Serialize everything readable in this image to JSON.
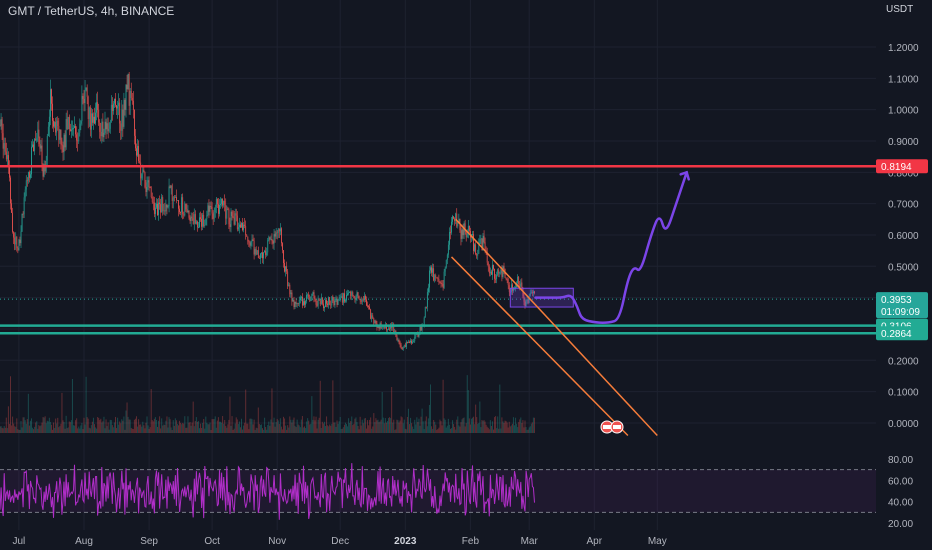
{
  "header": {
    "title": "GMT / TetherUS, 4h, BINANCE",
    "currency": "USDT"
  },
  "colors": {
    "background": "#131722",
    "grid": "#1e2230",
    "up": "#26a69a",
    "down": "#ef5350",
    "resistance": "#f23645",
    "support": "#22ab94",
    "channel": "#f57c3a",
    "projection": "#7b45e8",
    "rsi": "#b02ec8"
  },
  "chart_data": [
    {
      "type": "candlestick",
      "title": "GMT / TetherUS, 4h, BINANCE",
      "ylabel": "USDT",
      "x_tick_labels": [
        "Jul",
        "Aug",
        "Sep",
        "Oct",
        "Nov",
        "Dec",
        "2023",
        "Feb",
        "Mar",
        "Apr",
        "May"
      ],
      "y_tick_labels": [
        "1.2000",
        "1.1000",
        "1.0000",
        "0.9000",
        "0.8000",
        "0.7000",
        "0.6000",
        "0.5000",
        "0.4000",
        "0.3000",
        "0.2000",
        "0.1000",
        "0.0000"
      ],
      "ylim": [
        0.0,
        1.2
      ],
      "price_path": [
        [
          "Jun 22",
          0.95
        ],
        [
          "Jun 26",
          0.85
        ],
        [
          "Jun 28",
          0.6
        ],
        [
          "Jul 1",
          0.57
        ],
        [
          "Jul 4",
          0.72
        ],
        [
          "Jul 7",
          0.85
        ],
        [
          "Jul 10",
          0.9
        ],
        [
          "Jul 13",
          0.8
        ],
        [
          "Jul 16",
          1.02
        ],
        [
          "Jul 19",
          0.95
        ],
        [
          "Jul 22",
          0.88
        ],
        [
          "Jul 25",
          0.98
        ],
        [
          "Jul 28",
          0.9
        ],
        [
          "Aug 1",
          1.05
        ],
        [
          "Aug 4",
          0.98
        ],
        [
          "Aug 7",
          1.0
        ],
        [
          "Aug 10",
          0.92
        ],
        [
          "Aug 13",
          0.96
        ],
        [
          "Aug 16",
          1.0
        ],
        [
          "Aug 19",
          0.97
        ],
        [
          "Aug 22",
          1.08
        ],
        [
          "Aug 25",
          0.95
        ],
        [
          "Aug 27",
          0.82
        ],
        [
          "Aug 31",
          0.75
        ],
        [
          "Sep 4",
          0.69
        ],
        [
          "Sep 8",
          0.7
        ],
        [
          "Sep 12",
          0.74
        ],
        [
          "Sep 16",
          0.7
        ],
        [
          "Sep 20",
          0.66
        ],
        [
          "Sep 25",
          0.65
        ],
        [
          "Sep 30",
          0.67
        ],
        [
          "Oct 5",
          0.7
        ],
        [
          "Oct 10",
          0.65
        ],
        [
          "Oct 15",
          0.64
        ],
        [
          "Oct 20",
          0.57
        ],
        [
          "Oct 24",
          0.53
        ],
        [
          "Oct 28",
          0.58
        ],
        [
          "Nov 2",
          0.62
        ],
        [
          "Nov 5",
          0.48
        ],
        [
          "Nov 9",
          0.37
        ],
        [
          "Nov 13",
          0.39
        ],
        [
          "Nov 18",
          0.4
        ],
        [
          "Nov 23",
          0.38
        ],
        [
          "Nov 28",
          0.39
        ],
        [
          "Dec 3",
          0.4
        ],
        [
          "Dec 8",
          0.41
        ],
        [
          "Dec 13",
          0.39
        ],
        [
          "Dec 17",
          0.32
        ],
        [
          "Dec 22",
          0.3
        ],
        [
          "Dec 26",
          0.31
        ],
        [
          "Dec 30",
          0.24
        ],
        [
          "Jan 3",
          0.26
        ],
        [
          "Jan 7",
          0.28
        ],
        [
          "Jan 10",
          0.33
        ],
        [
          "Jan 13",
          0.5
        ],
        [
          "Jan 16",
          0.45
        ],
        [
          "Jan 19",
          0.44
        ],
        [
          "Jan 22",
          0.62
        ],
        [
          "Jan 25",
          0.66
        ],
        [
          "Jan 28",
          0.6
        ],
        [
          "Jan 31",
          0.63
        ],
        [
          "Feb 3",
          0.55
        ],
        [
          "Feb 7",
          0.58
        ],
        [
          "Feb 10",
          0.5
        ],
        [
          "Feb 14",
          0.47
        ],
        [
          "Feb 17",
          0.49
        ],
        [
          "Feb 20",
          0.42
        ],
        [
          "Feb 24",
          0.45
        ],
        [
          "Feb 27",
          0.39
        ],
        [
          "Mar 2",
          0.41
        ],
        [
          "Mar 4",
          0.3953
        ]
      ],
      "horizontal_levels": [
        {
          "label": "0.8194",
          "value": 0.8194,
          "role": "resistance"
        },
        {
          "label": "0.3106",
          "value": 0.3106,
          "role": "support"
        },
        {
          "label": "0.2864",
          "value": 0.2864,
          "role": "support"
        }
      ],
      "current_price": {
        "label": "0.3953",
        "value": 0.3953,
        "countdown": "01:09:09"
      },
      "consolidation_box": {
        "x_from": "Feb 20",
        "x_to": "Mar 22",
        "y_from": 0.37,
        "y_to": 0.43
      },
      "descending_channel": {
        "upper": [
          [
            "Jan 25",
            0.65
          ],
          [
            "May 1",
            -0.04
          ]
        ],
        "lower": [
          [
            "Jan 23",
            0.53
          ],
          [
            "Apr 17",
            -0.04
          ]
        ]
      },
      "projection_path": [
        [
          "Mar 4",
          0.4
        ],
        [
          "Mar 12",
          0.4
        ],
        [
          "Mar 17",
          0.4
        ],
        [
          "Mar 21",
          0.41
        ],
        [
          "Mar 24",
          0.37
        ],
        [
          "Mar 26",
          0.33
        ],
        [
          "Apr 2",
          0.32
        ],
        [
          "Apr 8",
          0.32
        ],
        [
          "Apr 13",
          0.33
        ],
        [
          "Apr 17",
          0.46
        ],
        [
          "Apr 20",
          0.5
        ],
        [
          "Apr 23",
          0.48
        ],
        [
          "Apr 28",
          0.6
        ],
        [
          "May 2",
          0.67
        ],
        [
          "May 5",
          0.6
        ],
        [
          "May 10",
          0.7
        ],
        [
          "May 15",
          0.8
        ]
      ]
    },
    {
      "type": "line",
      "title": "RSI",
      "y_tick_labels": [
        "80.00",
        "60.00",
        "40.00",
        "20.00"
      ],
      "ylim": [
        20,
        80
      ],
      "overbought": 70,
      "oversold": 30
    }
  ]
}
